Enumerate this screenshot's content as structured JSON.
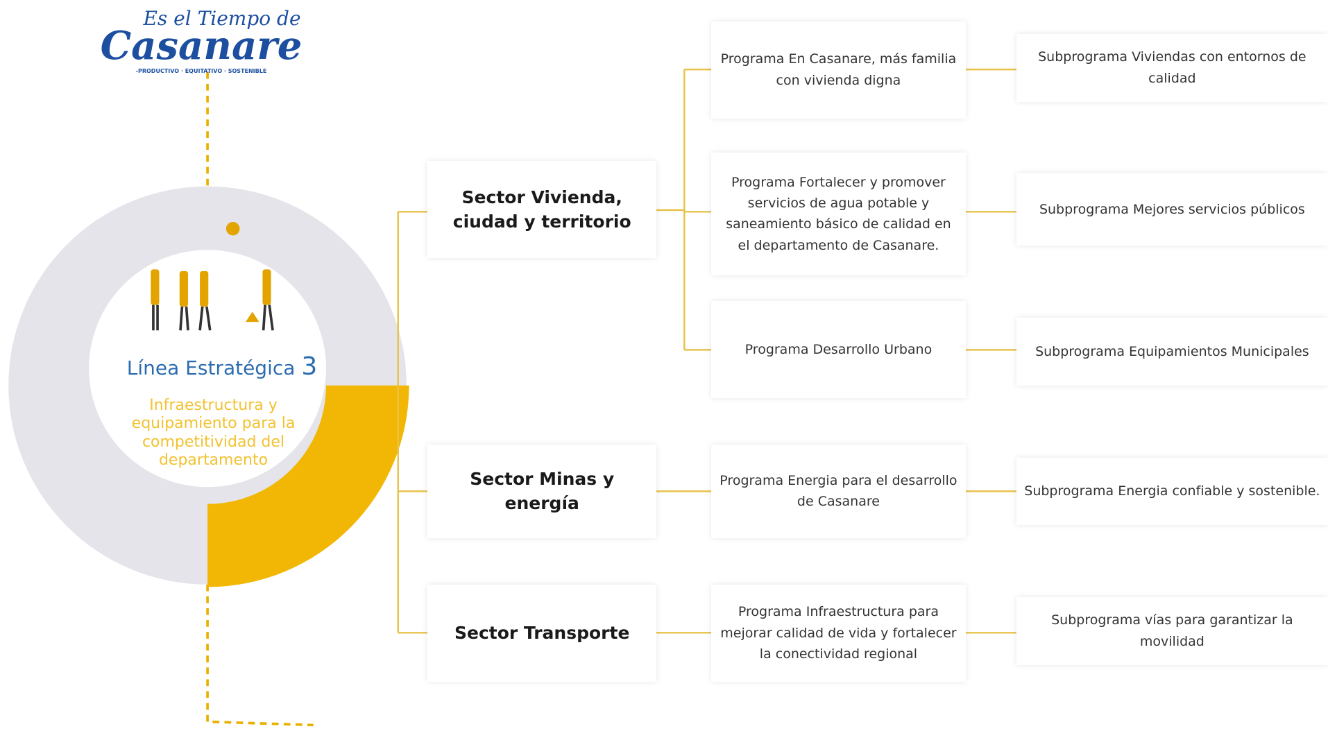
{
  "logo": {
    "top": "Es el Tiempo de",
    "name": "Casanare",
    "tagline": "-PRODUCTIVO · EQUITATIVO · SOSTENIBLE"
  },
  "line": {
    "label": "Línea Estratégica",
    "number": "3",
    "description": "Infraestructura y equipamiento para la competitividad del departamento"
  },
  "sectors": [
    {
      "name": "Sector Vivienda, ciudad y territorio",
      "programs": [
        {
          "name": "Programa En Casanare, más familia con vivienda digna",
          "subprogram": "Subprograma Viviendas con entornos de calidad"
        },
        {
          "name": "Programa Fortalecer y promover servicios de agua potable y saneamiento básico de calidad en el departamento de Casanare.",
          "subprogram": "Subprograma Mejores servicios públicos"
        },
        {
          "name": "Programa Desarrollo Urbano",
          "subprogram": "Subprograma Equipamientos Municipales"
        }
      ]
    },
    {
      "name": "Sector Minas y energía",
      "programs": [
        {
          "name": "Programa Energia para el desarrollo de Casanare",
          "subprogram": "Subprograma Energia confiable y sostenible."
        }
      ]
    },
    {
      "name": "Sector Transporte",
      "programs": [
        {
          "name": "Programa Infraestructura  para mejorar calidad de vida y fortalecer la conectividad regional",
          "subprogram": "Subprograma vías para garantizar la movilidad"
        }
      ]
    }
  ]
}
